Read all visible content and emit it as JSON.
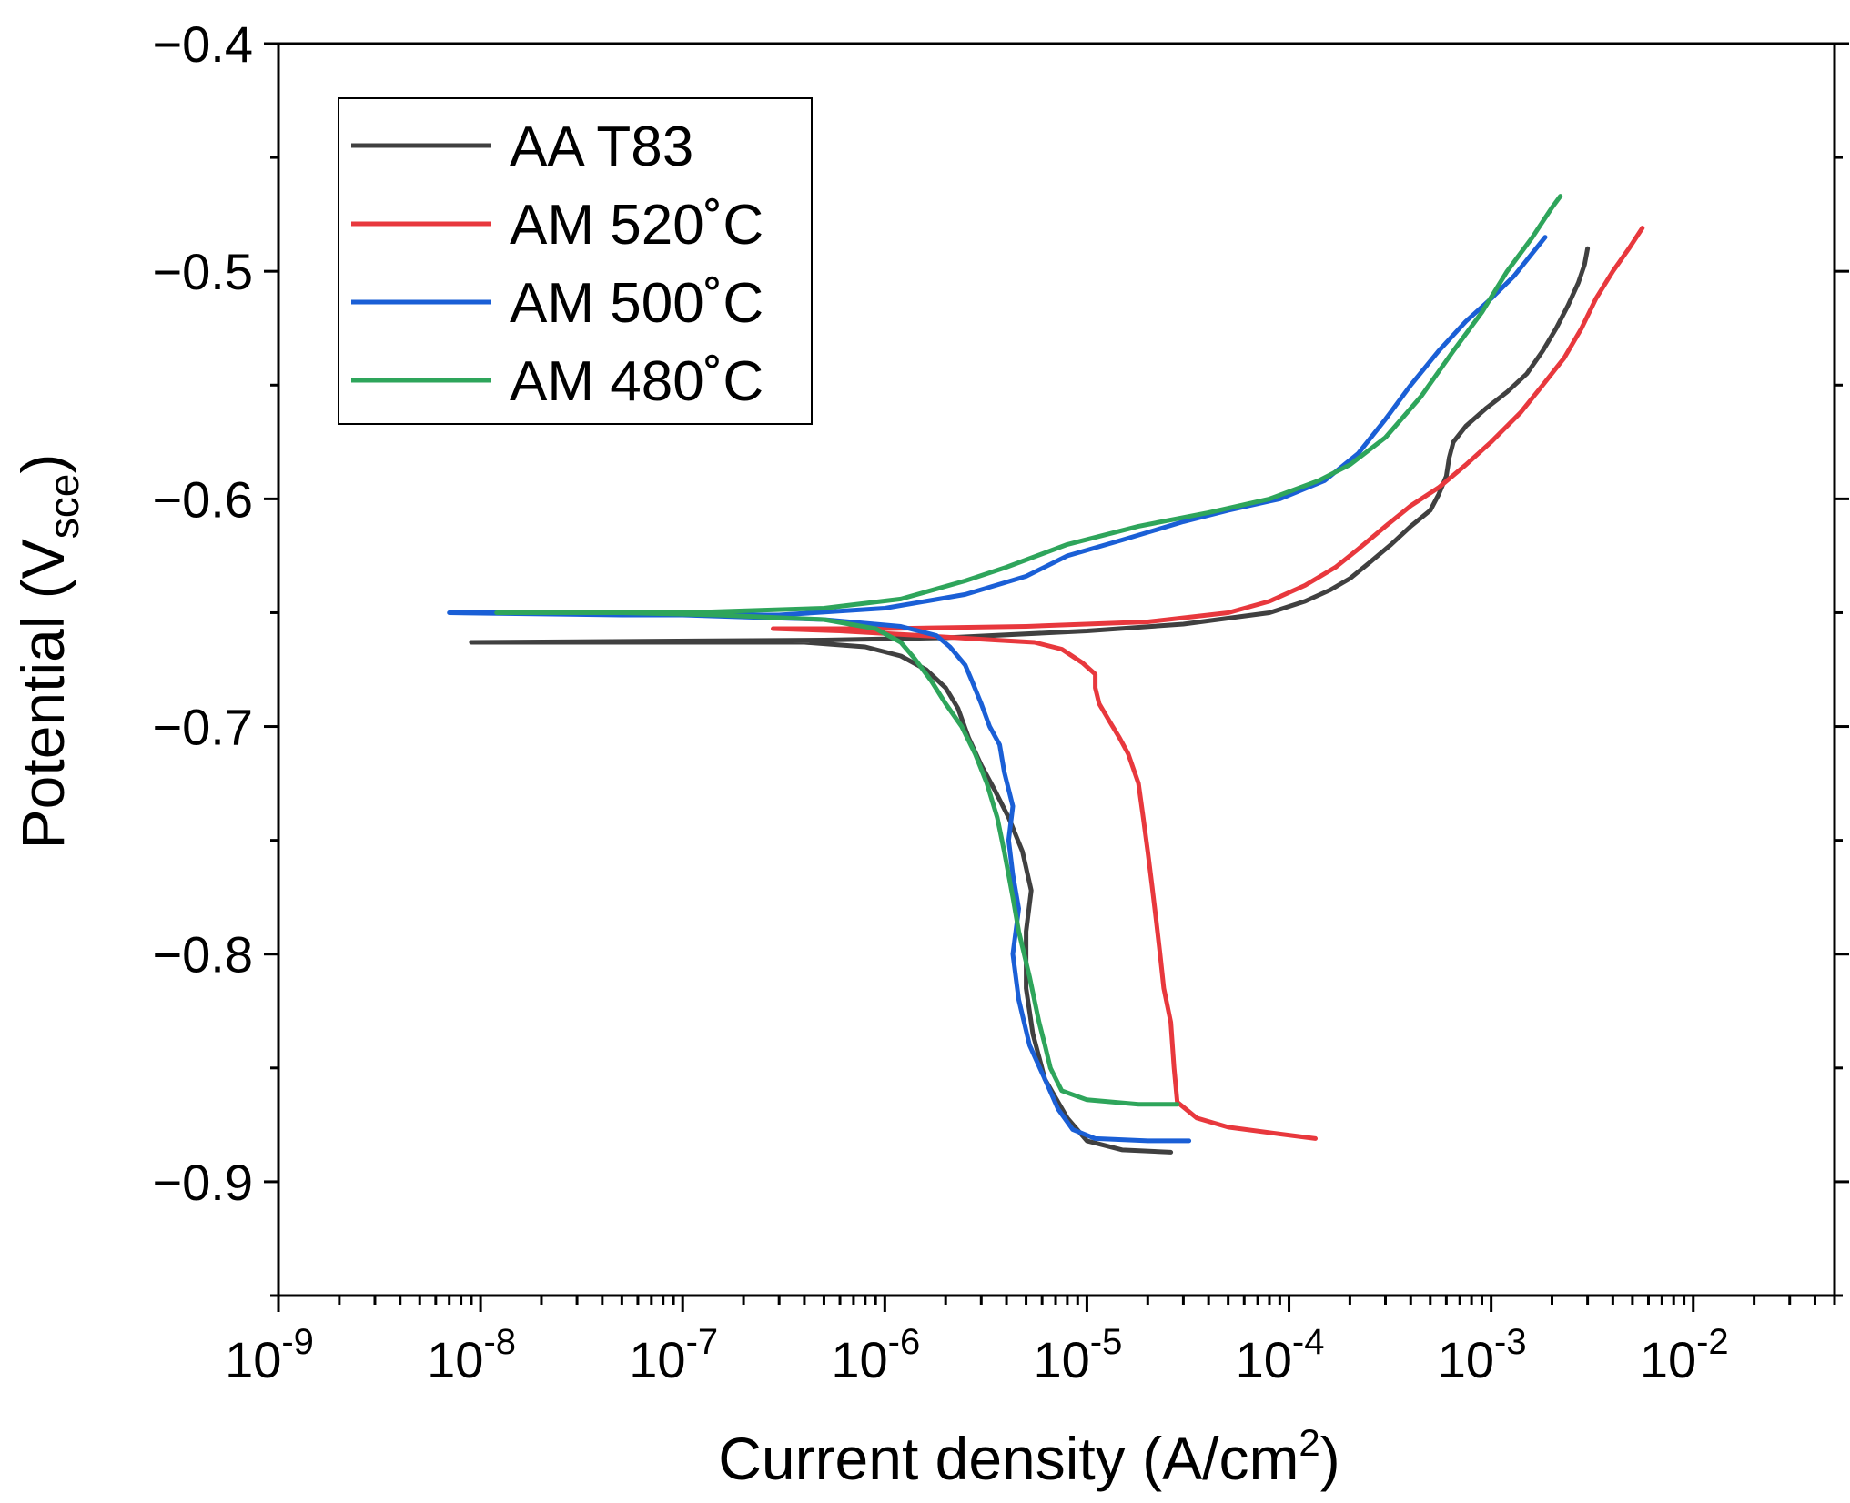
{
  "chart_data": {
    "type": "line",
    "xlabel": "Current density (A/cm",
    "xlabel_sup": "2",
    "xlabel_end": ")",
    "ylabel": "Potential (V",
    "ylabel_sub": "sce",
    "ylabel_end": ")",
    "xscale": "log",
    "xlim": [
      1e-09,
      0.05
    ],
    "ylim": [
      -0.95,
      -0.4
    ],
    "x_ticks": [
      {
        "value": 1e-09,
        "base": "10",
        "exp": "-9"
      },
      {
        "value": 1e-08,
        "base": "10",
        "exp": "-8"
      },
      {
        "value": 1e-07,
        "base": "10",
        "exp": "-7"
      },
      {
        "value": 1e-06,
        "base": "10",
        "exp": "-6"
      },
      {
        "value": 1e-05,
        "base": "10",
        "exp": "-5"
      },
      {
        "value": 0.0001,
        "base": "10",
        "exp": "-4"
      },
      {
        "value": 0.001,
        "base": "10",
        "exp": "-3"
      },
      {
        "value": 0.01,
        "base": "10",
        "exp": "-2"
      }
    ],
    "y_ticks": [
      {
        "value": -0.4,
        "label": "−0.4"
      },
      {
        "value": -0.5,
        "label": "−0.5"
      },
      {
        "value": -0.6,
        "label": "−0.6"
      },
      {
        "value": -0.7,
        "label": "−0.7"
      },
      {
        "value": -0.8,
        "label": "−0.8"
      },
      {
        "value": -0.9,
        "label": "−0.9"
      }
    ],
    "legend_position": "top-left",
    "grid": false,
    "series": [
      {
        "name": "AA T83",
        "color": "#404040",
        "points": [
          [
            2.6e-05,
            -0.887
          ],
          [
            1.5e-05,
            -0.886
          ],
          [
            1e-05,
            -0.882
          ],
          [
            8e-06,
            -0.872
          ],
          [
            6.2e-06,
            -0.855
          ],
          [
            5.4e-06,
            -0.835
          ],
          [
            5e-06,
            -0.815
          ],
          [
            5e-06,
            -0.79
          ],
          [
            5.3e-06,
            -0.772
          ],
          [
            4.8e-06,
            -0.755
          ],
          [
            4.1e-06,
            -0.74
          ],
          [
            3.5e-06,
            -0.728
          ],
          [
            3e-06,
            -0.717
          ],
          [
            2.6e-06,
            -0.705
          ],
          [
            2.3e-06,
            -0.692
          ],
          [
            2e-06,
            -0.683
          ],
          [
            1.6e-06,
            -0.675
          ],
          [
            1.2e-06,
            -0.669
          ],
          [
            8e-07,
            -0.665
          ],
          [
            4e-07,
            -0.663
          ],
          [
            1e-07,
            -0.663
          ],
          [
            3e-08,
            -0.663
          ],
          [
            9e-09,
            -0.663
          ],
          [
            9e-09,
            -0.663
          ],
          [
            5e-07,
            -0.662
          ],
          [
            2e-06,
            -0.661
          ],
          [
            1e-05,
            -0.658
          ],
          [
            3e-05,
            -0.655
          ],
          [
            8e-05,
            -0.65
          ],
          [
            0.00012,
            -0.645
          ],
          [
            0.00016,
            -0.64
          ],
          [
            0.0002,
            -0.635
          ],
          [
            0.00025,
            -0.628
          ],
          [
            0.00032,
            -0.62
          ],
          [
            0.0004,
            -0.612
          ],
          [
            0.0005,
            -0.605
          ],
          [
            0.00055,
            -0.598
          ],
          [
            0.0006,
            -0.59
          ],
          [
            0.00062,
            -0.582
          ],
          [
            0.00065,
            -0.575
          ],
          [
            0.00075,
            -0.568
          ],
          [
            0.00095,
            -0.56
          ],
          [
            0.0012,
            -0.553
          ],
          [
            0.0015,
            -0.545
          ],
          [
            0.0018,
            -0.535
          ],
          [
            0.0021,
            -0.525
          ],
          [
            0.0024,
            -0.515
          ],
          [
            0.0027,
            -0.505
          ],
          [
            0.0029,
            -0.497
          ],
          [
            0.003,
            -0.49
          ]
        ]
      },
      {
        "name": "AM 520˚C",
        "color": "#e8383d",
        "points": [
          [
            0.000135,
            -0.881
          ],
          [
            9e-05,
            -0.879
          ],
          [
            5e-05,
            -0.876
          ],
          [
            3.5e-05,
            -0.872
          ],
          [
            2.8e-05,
            -0.865
          ],
          [
            2.7e-05,
            -0.85
          ],
          [
            2.6e-05,
            -0.83
          ],
          [
            2.4e-05,
            -0.815
          ],
          [
            2.3e-05,
            -0.8
          ],
          [
            2.2e-05,
            -0.785
          ],
          [
            2.1e-05,
            -0.77
          ],
          [
            2e-05,
            -0.755
          ],
          [
            1.9e-05,
            -0.74
          ],
          [
            1.8e-05,
            -0.725
          ],
          [
            1.6e-05,
            -0.712
          ],
          [
            1.45e-05,
            -0.705
          ],
          [
            1.3e-05,
            -0.698
          ],
          [
            1.15e-05,
            -0.69
          ],
          [
            1.1e-05,
            -0.683
          ],
          [
            1.1e-05,
            -0.677
          ],
          [
            9.5e-06,
            -0.672
          ],
          [
            7.5e-06,
            -0.666
          ],
          [
            5.5e-06,
            -0.663
          ],
          [
            3.5e-06,
            -0.662
          ],
          [
            1.5e-06,
            -0.66
          ],
          [
            6e-07,
            -0.658
          ],
          [
            2.8e-07,
            -0.657
          ],
          [
            2.8e-07,
            -0.657
          ],
          [
            1e-06,
            -0.657
          ],
          [
            5e-06,
            -0.656
          ],
          [
            2e-05,
            -0.654
          ],
          [
            5e-05,
            -0.65
          ],
          [
            8e-05,
            -0.645
          ],
          [
            0.00012,
            -0.638
          ],
          [
            0.00017,
            -0.63
          ],
          [
            0.00022,
            -0.622
          ],
          [
            0.0003,
            -0.612
          ],
          [
            0.0004,
            -0.603
          ],
          [
            0.00055,
            -0.595
          ],
          [
            0.00075,
            -0.585
          ],
          [
            0.001,
            -0.575
          ],
          [
            0.0014,
            -0.562
          ],
          [
            0.0018,
            -0.55
          ],
          [
            0.0023,
            -0.538
          ],
          [
            0.0028,
            -0.525
          ],
          [
            0.0033,
            -0.512
          ],
          [
            0.004,
            -0.5
          ],
          [
            0.0048,
            -0.49
          ],
          [
            0.0056,
            -0.481
          ]
        ]
      },
      {
        "name": "AM 500˚C",
        "color": "#1a5fd6",
        "points": [
          [
            3.2e-05,
            -0.882
          ],
          [
            2e-05,
            -0.882
          ],
          [
            1.1e-05,
            -0.881
          ],
          [
            8.5e-06,
            -0.877
          ],
          [
            7.2e-06,
            -0.868
          ],
          [
            6.2e-06,
            -0.855
          ],
          [
            5.2e-06,
            -0.84
          ],
          [
            4.6e-06,
            -0.82
          ],
          [
            4.3e-06,
            -0.8
          ],
          [
            4.6e-06,
            -0.78
          ],
          [
            4.3e-06,
            -0.765
          ],
          [
            4.1e-06,
            -0.75
          ],
          [
            4.3e-06,
            -0.735
          ],
          [
            3.9e-06,
            -0.72
          ],
          [
            3.7e-06,
            -0.708
          ],
          [
            3.3e-06,
            -0.7
          ],
          [
            3e-06,
            -0.69
          ],
          [
            2.7e-06,
            -0.68
          ],
          [
            2.5e-06,
            -0.673
          ],
          [
            2.1e-06,
            -0.665
          ],
          [
            1.8e-06,
            -0.66
          ],
          [
            1.2e-06,
            -0.656
          ],
          [
            5e-07,
            -0.653
          ],
          [
            1e-07,
            -0.651
          ],
          [
            2e-08,
            -0.65
          ],
          [
            7e-09,
            -0.65
          ],
          [
            7e-09,
            -0.65
          ],
          [
            5e-08,
            -0.651
          ],
          [
            3e-07,
            -0.651
          ],
          [
            1e-06,
            -0.648
          ],
          [
            2.5e-06,
            -0.642
          ],
          [
            5e-06,
            -0.634
          ],
          [
            8e-06,
            -0.625
          ],
          [
            1.5e-05,
            -0.618
          ],
          [
            3e-05,
            -0.61
          ],
          [
            5e-05,
            -0.605
          ],
          [
            9e-05,
            -0.6
          ],
          [
            0.00015,
            -0.592
          ],
          [
            0.00022,
            -0.58
          ],
          [
            0.0003,
            -0.565
          ],
          [
            0.0004,
            -0.55
          ],
          [
            0.00055,
            -0.535
          ],
          [
            0.00075,
            -0.522
          ],
          [
            0.001,
            -0.512
          ],
          [
            0.0013,
            -0.502
          ],
          [
            0.0016,
            -0.492
          ],
          [
            0.00185,
            -0.485
          ]
        ]
      },
      {
        "name": "AM 480˚C",
        "color": "#2ea55b",
        "points": [
          [
            2.8e-05,
            -0.866
          ],
          [
            1.8e-05,
            -0.866
          ],
          [
            1e-05,
            -0.864
          ],
          [
            7.5e-06,
            -0.86
          ],
          [
            6.6e-06,
            -0.85
          ],
          [
            6.2e-06,
            -0.84
          ],
          [
            5.8e-06,
            -0.83
          ],
          [
            5.2e-06,
            -0.81
          ],
          [
            4.6e-06,
            -0.79
          ],
          [
            4.3e-06,
            -0.775
          ],
          [
            3.9e-06,
            -0.755
          ],
          [
            3.6e-06,
            -0.74
          ],
          [
            3.2e-06,
            -0.725
          ],
          [
            2.8e-06,
            -0.712
          ],
          [
            2.4e-06,
            -0.7
          ],
          [
            2e-06,
            -0.69
          ],
          [
            1.7e-06,
            -0.68
          ],
          [
            1.4e-06,
            -0.67
          ],
          [
            1.2e-06,
            -0.663
          ],
          [
            9e-07,
            -0.657
          ],
          [
            5e-07,
            -0.653
          ],
          [
            1.5e-07,
            -0.651
          ],
          [
            5e-08,
            -0.65
          ],
          [
            1.2e-08,
            -0.65
          ],
          [
            1.2e-08,
            -0.65
          ],
          [
            1e-07,
            -0.65
          ],
          [
            5e-07,
            -0.648
          ],
          [
            1.2e-06,
            -0.644
          ],
          [
            2.5e-06,
            -0.636
          ],
          [
            4e-06,
            -0.63
          ],
          [
            8e-06,
            -0.62
          ],
          [
            1.8e-05,
            -0.612
          ],
          [
            4e-05,
            -0.606
          ],
          [
            8e-05,
            -0.6
          ],
          [
            0.00014,
            -0.592
          ],
          [
            0.0002,
            -0.585
          ],
          [
            0.0003,
            -0.573
          ],
          [
            0.00045,
            -0.555
          ],
          [
            0.00065,
            -0.535
          ],
          [
            0.0009,
            -0.518
          ],
          [
            0.0012,
            -0.5
          ],
          [
            0.0016,
            -0.485
          ],
          [
            0.002,
            -0.472
          ],
          [
            0.0022,
            -0.467
          ]
        ]
      }
    ]
  }
}
